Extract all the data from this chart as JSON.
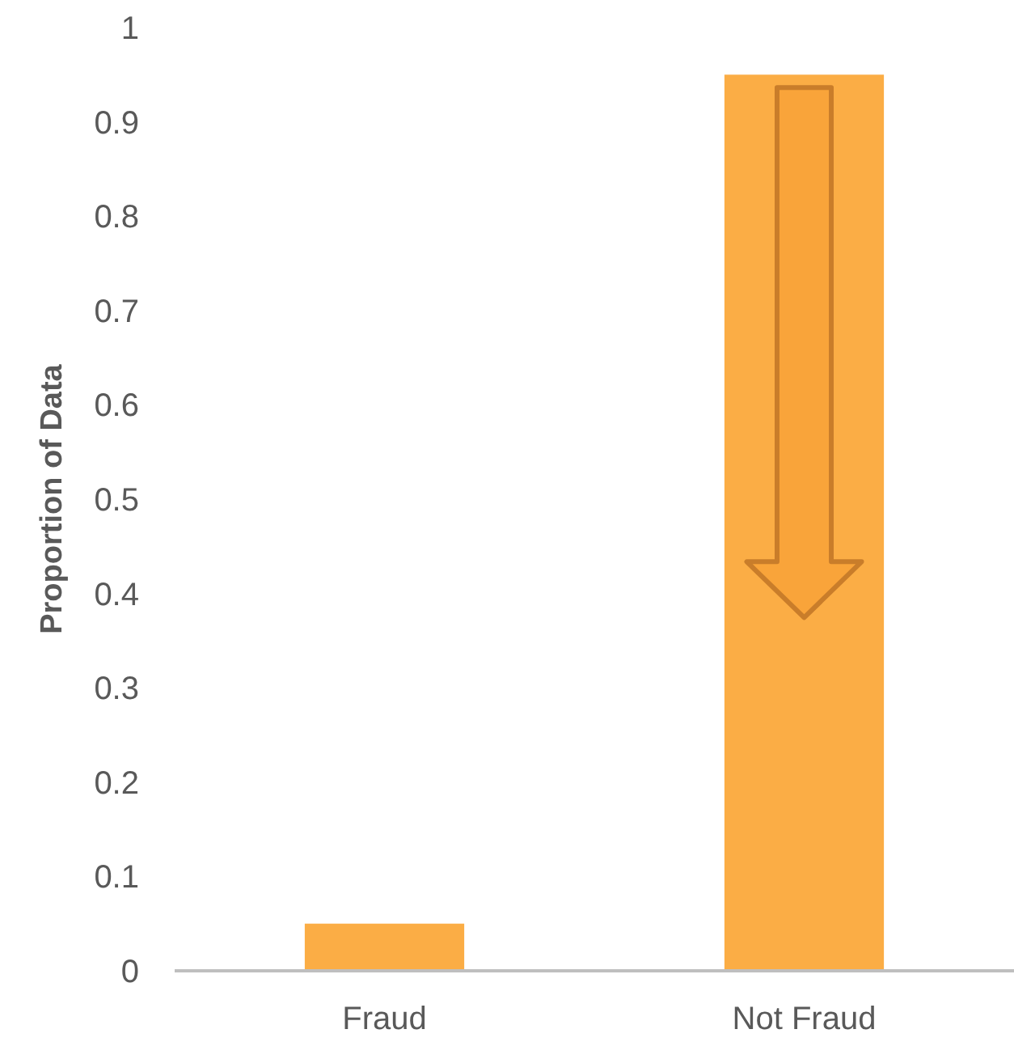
{
  "chart_data": {
    "type": "bar",
    "ylabel": "Proportion of Data",
    "categories": [
      "Fraud",
      "Not Fraud"
    ],
    "values": [
      0.05,
      0.95
    ],
    "color": "#fbad45",
    "ylim": [
      0,
      1
    ],
    "yticks": [
      0,
      0.1,
      0.2,
      0.3,
      0.4,
      0.5,
      0.6,
      0.7,
      0.8,
      0.9,
      1
    ],
    "grid": false
  }
}
